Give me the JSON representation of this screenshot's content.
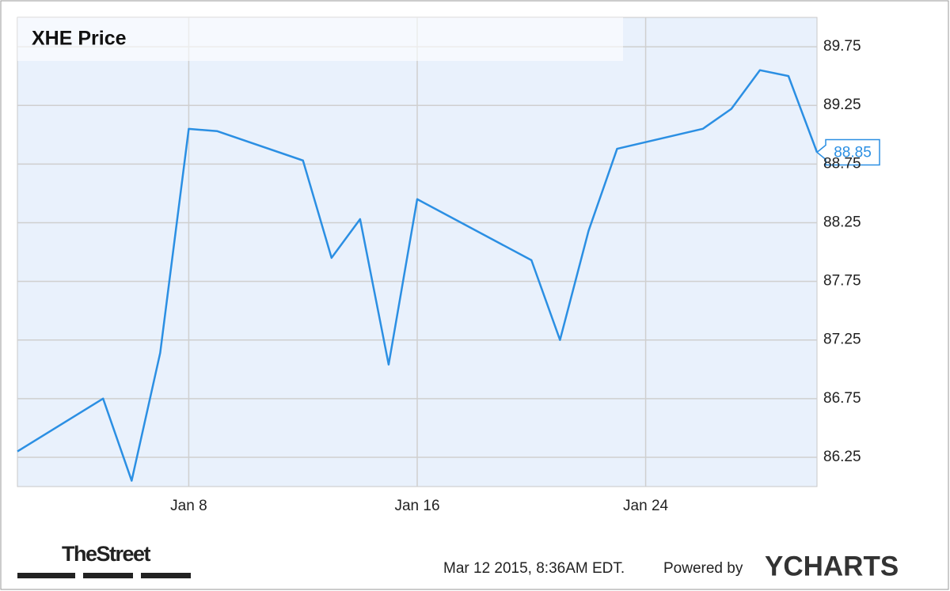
{
  "chart_data": {
    "type": "line",
    "title": "XHE Price",
    "x": [
      2,
      5,
      6,
      7,
      8,
      9,
      12,
      13,
      14,
      15,
      16,
      20,
      21,
      22,
      23,
      26,
      27,
      28,
      29,
      30
    ],
    "xlim": [
      2,
      30
    ],
    "xticks": [
      {
        "value": 8,
        "label": "Jan 8"
      },
      {
        "value": 16,
        "label": "Jan 16"
      },
      {
        "value": 24,
        "label": "Jan 24"
      }
    ],
    "ylim": [
      86,
      90
    ],
    "yticks": [
      {
        "value": 86.25,
        "label": "86.25"
      },
      {
        "value": 86.75,
        "label": "86.75"
      },
      {
        "value": 87.25,
        "label": "87.25"
      },
      {
        "value": 87.75,
        "label": "87.75"
      },
      {
        "value": 88.25,
        "label": "88.25"
      },
      {
        "value": 88.75,
        "label": "88.75"
      },
      {
        "value": 89.25,
        "label": "89.25"
      },
      {
        "value": 89.75,
        "label": "89.75"
      }
    ],
    "grid": true,
    "series": [
      {
        "name": "XHE",
        "color": "#2b8fe3",
        "values": [
          86.3,
          86.75,
          86.05,
          87.14,
          89.05,
          89.03,
          88.78,
          87.95,
          88.28,
          87.04,
          88.45,
          87.93,
          87.25,
          88.18,
          88.88,
          89.05,
          89.22,
          89.55,
          89.5,
          88.85
        ]
      }
    ]
  },
  "footer": {
    "brand": "TheStreet",
    "timestamp": "Mar 12 2015, 8:36AM EDT.",
    "powered": "Powered by",
    "logo": "YCHARTS"
  }
}
